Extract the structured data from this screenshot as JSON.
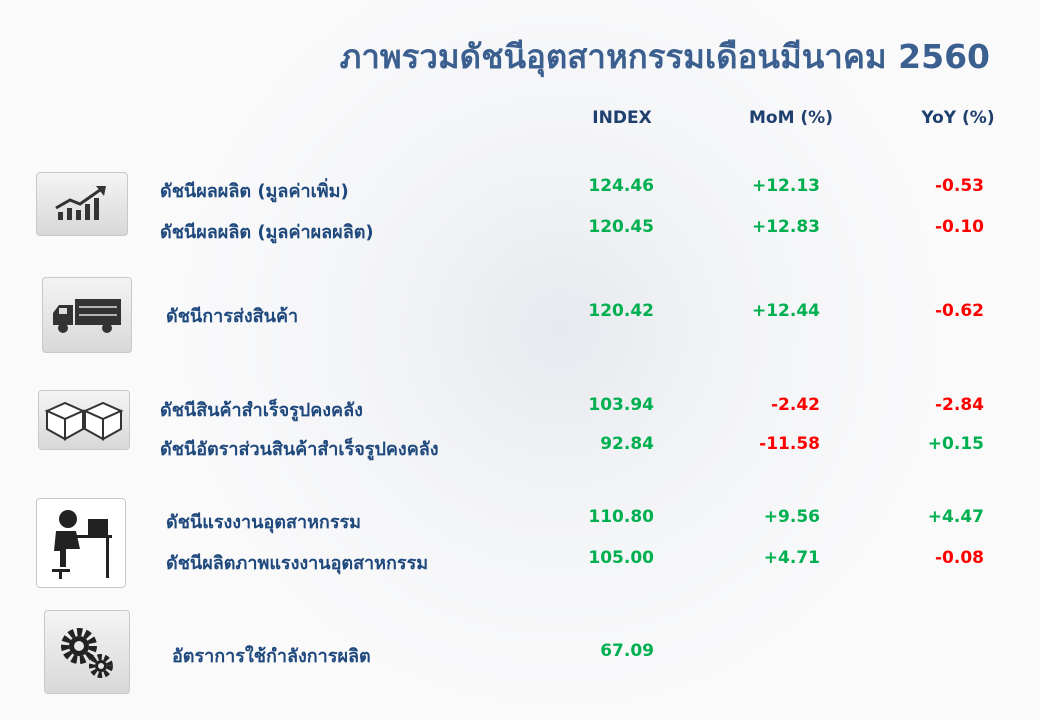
{
  "title": "ภาพรวมดัชนีอุตสาหกรรมเดือนมีนาคม 2560",
  "headers": {
    "index": "INDEX",
    "mom": "MoM (%)",
    "yoy": "YoY (%)"
  },
  "colors": {
    "positive": "#00b050",
    "negative": "#ff0000",
    "label": "#1f497d"
  },
  "groups": [
    {
      "icon": "trending-up-chart-icon"
    },
    {
      "icon": "delivery-truck-icon"
    },
    {
      "icon": "boxes-icon"
    },
    {
      "icon": "worker-at-desk-icon"
    },
    {
      "icon": "gears-icon"
    }
  ],
  "rows": [
    {
      "label": "ดัชนีผลผลิต (มูลค่าเพิ่ม)",
      "index": "124.46",
      "mom": "+12.13",
      "yoy": "-0.53"
    },
    {
      "label": "ดัชนีผลผลิต (มูลค่าผลผลิต)",
      "index": "120.45",
      "mom": "+12.83",
      "yoy": "-0.10"
    },
    {
      "label": "ดัชนีการส่งสินค้า",
      "index": "120.42",
      "mom": "+12.44",
      "yoy": "-0.62"
    },
    {
      "label": "ดัชนีสินค้าสำเร็จรูปคงคลัง",
      "index": "103.94",
      "mom": "-2.42",
      "yoy": "-2.84"
    },
    {
      "label": "ดัชนีอัตราส่วนสินค้าสำเร็จรูปคงคลัง",
      "index": "92.84",
      "mom": "-11.58",
      "yoy": "+0.15"
    },
    {
      "label": "ดัชนีแรงงานอุตสาหกรรม",
      "index": "110.80",
      "mom": "+9.56",
      "yoy": "+4.47"
    },
    {
      "label": "ดัชนีผลิตภาพแรงงานอุตสาหกรรม",
      "index": "105.00",
      "mom": "+4.71",
      "yoy": "-0.08"
    },
    {
      "label": "อัตราการใช้กำลังการผลิต",
      "index": "67.09"
    }
  ]
}
